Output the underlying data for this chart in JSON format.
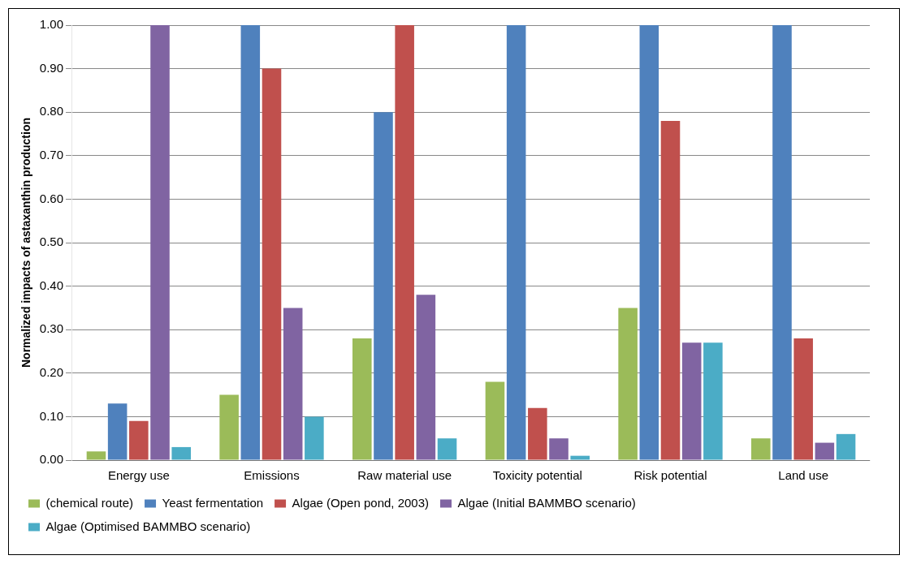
{
  "chart_data": {
    "type": "bar",
    "ylabel": "Normalized impacts of astaxanthin production",
    "categories": [
      "Energy use",
      "Emissions",
      "Raw material use",
      "Toxicity potential",
      "Risk potential",
      "Land use"
    ],
    "series": [
      {
        "name": "(chemical route)",
        "color": "#9bbb59",
        "values": [
          0.02,
          0.15,
          0.28,
          0.18,
          0.35,
          0.05
        ]
      },
      {
        "name": "Yeast fermentation",
        "color": "#4f81bd",
        "values": [
          0.13,
          1.0,
          0.8,
          1.0,
          1.0,
          1.0
        ]
      },
      {
        "name": "Algae (Open pond, 2003)",
        "color": "#c0504d",
        "values": [
          0.09,
          0.9,
          1.0,
          0.12,
          0.78,
          0.28
        ]
      },
      {
        "name": "Algae (Initial BAMMBO scenario)",
        "color": "#8064a2",
        "values": [
          1.0,
          0.35,
          0.38,
          0.05,
          0.27,
          0.04
        ]
      },
      {
        "name": "Algae (Optimised BAMMBO scenario)",
        "color": "#4bacc6",
        "values": [
          0.03,
          0.1,
          0.05,
          0.01,
          0.27,
          0.06
        ]
      }
    ],
    "ylim": [
      0,
      1
    ],
    "yticks": [
      {
        "value": 0,
        "label": "0.00"
      },
      {
        "value": 0.1,
        "label": "0.10"
      },
      {
        "value": 0.2,
        "label": "0.20"
      },
      {
        "value": 0.3,
        "label": "0.30"
      },
      {
        "value": 0.4,
        "label": "0.40"
      },
      {
        "value": 0.5,
        "label": "0.50"
      },
      {
        "value": 0.6,
        "label": "0.60"
      },
      {
        "value": 0.7,
        "label": "0.70"
      },
      {
        "value": 0.8,
        "label": "0.80"
      },
      {
        "value": 0.9,
        "label": "0.90"
      },
      {
        "value": 1.0,
        "label": "1.00"
      }
    ],
    "grid": "y",
    "legend": "bottom"
  }
}
